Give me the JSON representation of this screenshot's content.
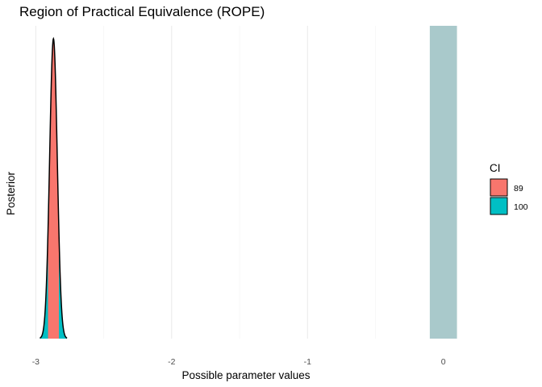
{
  "chart_data": {
    "type": "area",
    "title": "Region of Practical Equivalence (ROPE)",
    "xlabel": "Possible parameter values",
    "ylabel": "Posterior",
    "xlim": [
      -3.02,
      0.15
    ],
    "x_ticks": [
      -3,
      -2,
      -1,
      0
    ],
    "x_tick_labels": [
      "-3",
      "-2",
      "-1",
      "0"
    ],
    "grid": true,
    "legend": {
      "title": "CI",
      "position": "right",
      "entries": [
        {
          "label": "89",
          "color": "#F8766D"
        },
        {
          "label": "100",
          "color": "#00BFC4"
        }
      ]
    },
    "rope": {
      "range": [
        -0.1,
        0.1
      ],
      "color": "#A9C9CB"
    },
    "posterior": {
      "mean": -2.87,
      "sd": 0.028,
      "range": [
        -2.97,
        -2.77
      ],
      "ci_89": [
        -2.91,
        -2.83
      ]
    }
  }
}
